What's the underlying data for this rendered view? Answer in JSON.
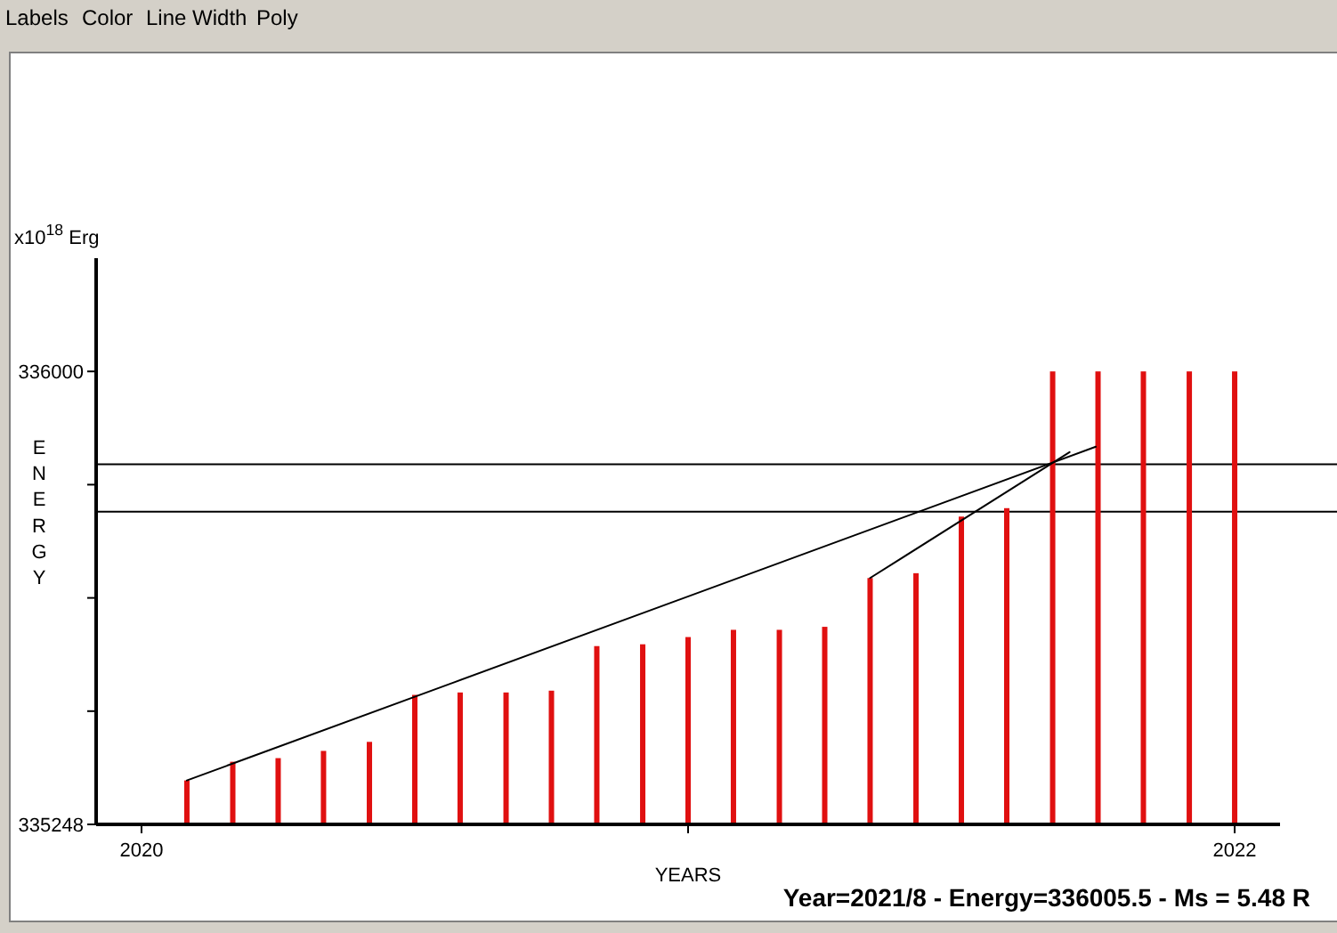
{
  "chart_data": {
    "type": "bar",
    "xlabel": "YEARS",
    "ylabel": "ENERGY",
    "annotations": [
      "Labels",
      "Color",
      "Line Width",
      "Poly",
      "x10$^{18}$ Erg",
      "Year=2021/8 - Energy=336005.5 - Ms = 5.48 R"
    ],
    "x": [
      2020.083,
      2020.167,
      2020.25,
      2020.333,
      2020.417,
      2020.5,
      2020.583,
      2020.667,
      2020.75,
      2020.833,
      2020.917,
      2021,
      2021.083,
      2021.167,
      2021.25,
      2021.333,
      2021.417,
      2021.5,
      2021.583,
      2021.667,
      2021.75,
      2021.833,
      2021.917,
      2022
    ],
    "xlim": [
      2019.917,
      2022.083
    ],
    "xticks": [
      2020,
      {
        "value": 2021,
        "label": null
      },
      2022
    ],
    "ylim": [
      335248,
      336188
    ],
    "yticks": [
      335248,
      {
        "value": 335436,
        "label": null
      },
      {
        "value": 335624,
        "label": null
      },
      {
        "value": 335812,
        "label": null
      },
      336000
    ],
    "series": [
      {
        "color": "#e01010",
        "values": [
          335321,
          335352,
          335358,
          335370,
          335385,
          335463,
          335467,
          335467,
          335470,
          335544,
          335547,
          335559,
          335571,
          335571,
          335576,
          335657,
          335665,
          335759,
          335773,
          336000,
          336000,
          336000,
          336000,
          336000
        ]
      },
      {
        "type": "line",
        "color": "#000000",
        "x": [
          2020.083,
          2021.746
        ],
        "values": [
          335321,
          335875
        ]
      },
      {
        "type": "line",
        "color": "#000000",
        "x": [
          2021.333,
          2021.698
        ],
        "values": [
          335657,
          335866
        ]
      }
    ],
    "ref_lines": [
      {
        "axis": "y",
        "value": 335846,
        "color": "#000000"
      },
      {
        "axis": "y",
        "value": 335767,
        "color": "#000000"
      }
    ]
  }
}
